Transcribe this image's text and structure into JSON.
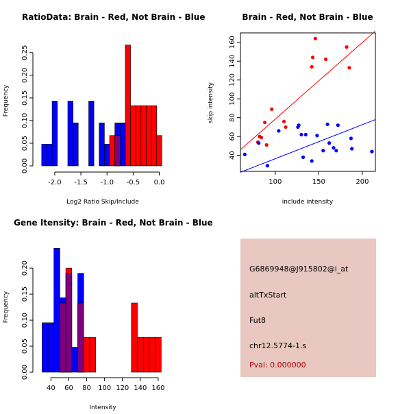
{
  "colors": {
    "red": "#ff0000",
    "blue": "#0000ff",
    "overlap": "#7f007f",
    "panel_bg": "#e8c8c0",
    "pval": "#aa0000"
  },
  "chart_data": [
    {
      "type": "bar",
      "title": "RatioData: Brain - Red, Not Brain - Blue",
      "xlabel": "Log2 Ratio Skip/Include",
      "ylabel": "Frequency",
      "xlim": [
        -2.3,
        0.15
      ],
      "ylim": [
        0,
        0.28
      ],
      "xticks": [
        -2.0,
        -1.5,
        -1.0,
        -0.5,
        0.0
      ],
      "xtick_labels": [
        "-2.0",
        "-1.5",
        "-1.0",
        "-0.5",
        "0.0"
      ],
      "yticks": [
        0.0,
        0.05,
        0.1,
        0.15,
        0.2,
        0.25
      ],
      "ytick_labels": [
        "0.00",
        "0.05",
        "0.10",
        "0.15",
        "0.20",
        "0.25"
      ],
      "bin_width": 0.1,
      "series": [
        {
          "name": "Not Brain",
          "color": "blue",
          "starts": [
            -2.25,
            -2.15,
            -2.05,
            -1.75,
            -1.65,
            -1.35,
            -1.15,
            -1.05,
            -0.85,
            -0.75
          ],
          "values": [
            0.048,
            0.048,
            0.143,
            0.143,
            0.095,
            0.143,
            0.095,
            0.048,
            0.095,
            0.095
          ]
        },
        {
          "name": "Brain",
          "color": "red",
          "starts": [
            -0.95,
            -0.85,
            -0.65,
            -0.55,
            -0.45,
            -0.35,
            -0.25,
            -0.15,
            -0.05
          ],
          "values": [
            0.067,
            0.067,
            0.267,
            0.133,
            0.133,
            0.133,
            0.133,
            0.133,
            0.067
          ]
        }
      ]
    },
    {
      "type": "scatter",
      "title": "Brain - Red, Not Brain - Blue",
      "xlabel": "include intensity",
      "ylabel": "skip intensity",
      "xlim": [
        60,
        215
      ],
      "ylim": [
        23,
        170
      ],
      "xticks": [
        100,
        150,
        200
      ],
      "xtick_labels": [
        "100",
        "150",
        "200"
      ],
      "yticks": [
        40,
        60,
        80,
        100,
        120,
        140,
        160
      ],
      "ytick_labels": [
        "40",
        "60",
        "80",
        "100",
        "120",
        "140",
        "160"
      ],
      "series": [
        {
          "name": "Brain",
          "color": "red",
          "x": [
            80,
            82,
            84,
            88,
            90,
            96,
            110,
            112,
            142,
            143,
            146,
            158,
            182,
            185
          ],
          "y": [
            54,
            60,
            59,
            75,
            51,
            89,
            76,
            70,
            134,
            144,
            164,
            142,
            155,
            133
          ],
          "fit": {
            "x": [
              60,
              215
            ],
            "y": [
              46,
              172
            ]
          }
        },
        {
          "name": "Not Brain",
          "color": "blue",
          "x": [
            65,
            81,
            91,
            104,
            126,
            127,
            130,
            132,
            135,
            142,
            148,
            155,
            160,
            162,
            167,
            170,
            172,
            187,
            188,
            211
          ],
          "y": [
            41,
            53,
            29,
            66,
            70,
            72,
            62,
            38,
            62,
            34,
            61,
            45,
            73,
            53,
            48,
            45,
            72,
            58,
            47,
            44
          ],
          "fit": {
            "x": [
              60,
              215
            ],
            "y": [
              22,
              78
            ]
          }
        }
      ]
    },
    {
      "type": "bar",
      "title": "Gene Itensity: Brain - Red, Not Brain - Blue",
      "xlabel": "Intensity",
      "ylabel": "Frequency",
      "xlim": [
        26.7,
        170
      ],
      "ylim": [
        0,
        0.245
      ],
      "xticks": [
        40,
        60,
        80,
        100,
        120,
        140,
        160
      ],
      "xtick_labels": [
        "40",
        "60",
        "80",
        "100",
        "120",
        "140",
        "160"
      ],
      "yticks": [
        0.0,
        0.05,
        0.1,
        0.15,
        0.2
      ],
      "ytick_labels": [
        "0.00",
        "0.05",
        "0.10",
        "0.15",
        "0.20"
      ],
      "bin_width": 6.67,
      "series": [
        {
          "name": "Not Brain",
          "color": "blue",
          "starts": [
            30,
            36.67,
            43.33,
            50,
            56.67,
            63.33,
            70
          ],
          "values": [
            0.095,
            0.095,
            0.238,
            0.143,
            0.19,
            0.048,
            0.19
          ]
        },
        {
          "name": "Brain",
          "color": "red",
          "starts": [
            50,
            56.67,
            70,
            76.67,
            83.33,
            130,
            136.67,
            143.33,
            150,
            156.67
          ],
          "values": [
            0.133,
            0.2,
            0.133,
            0.067,
            0.067,
            0.133,
            0.067,
            0.067,
            0.067,
            0.067
          ]
        }
      ]
    }
  ],
  "info": {
    "probe": "G6869948@J915802@i_at",
    "event": "altTxStart",
    "gene": "Fut8",
    "location": "chr12.5774-1.s",
    "pval": "Pval: 0.000000"
  }
}
